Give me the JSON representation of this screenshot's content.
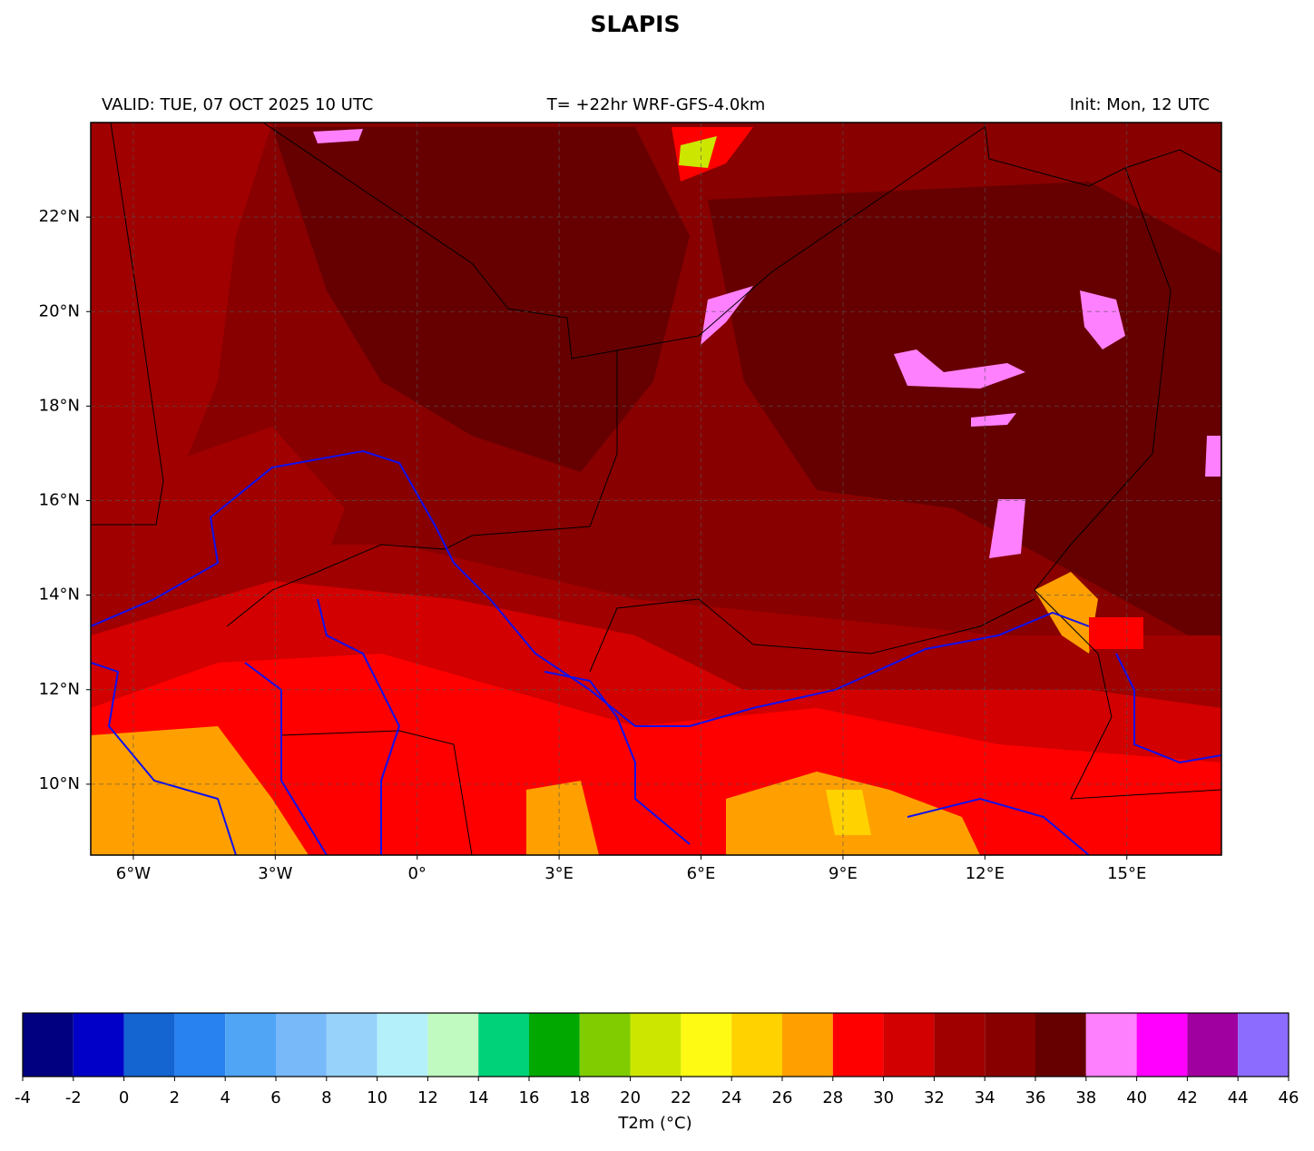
{
  "header": {
    "title": "SLAPIS",
    "valid": "VALID: TUE, 07 OCT 2025 10 UTC",
    "run": "T= +22hr WRF-GFS-4.0km",
    "init": "Init: Mon, 12 UTC"
  },
  "map": {
    "xlim": [
      -6.9,
      17
    ],
    "ylim": [
      8.5,
      24
    ],
    "xticks": [
      {
        "value": -6,
        "label": "6°W"
      },
      {
        "value": -3,
        "label": "3°W"
      },
      {
        "value": 0,
        "label": "0°"
      },
      {
        "value": 3,
        "label": "3°E"
      },
      {
        "value": 6,
        "label": "6°E"
      },
      {
        "value": 9,
        "label": "9°E"
      },
      {
        "value": 12,
        "label": "12°E"
      },
      {
        "value": 15,
        "label": "15°E"
      }
    ],
    "yticks": [
      {
        "value": 10,
        "label": "10°N"
      },
      {
        "value": 12,
        "label": "12°N"
      },
      {
        "value": 14,
        "label": "14°N"
      },
      {
        "value": 16,
        "label": "16°N"
      },
      {
        "value": 18,
        "label": "18°N"
      },
      {
        "value": 20,
        "label": "20°N"
      },
      {
        "value": 22,
        "label": "22°N"
      }
    ]
  },
  "colorbar": {
    "label": "T2m (°C)",
    "bounds": [
      -4,
      -2,
      0,
      2,
      4,
      6,
      8,
      10,
      12,
      14,
      16,
      18,
      20,
      22,
      24,
      26,
      28,
      30,
      32,
      34,
      36,
      38,
      40,
      42,
      44,
      46
    ],
    "colors": [
      "#000080",
      "#0000c8",
      "#1464d2",
      "#2882f0",
      "#50a5f5",
      "#78b9fa",
      "#96d2fa",
      "#b4f0fa",
      "#c0fac0",
      "#00d27a",
      "#00a800",
      "#80cc00",
      "#cce600",
      "#fffa14",
      "#ffd200",
      "#ffa000",
      "#ff0000",
      "#d20000",
      "#a00000",
      "#880000",
      "#660000",
      "#ff80ff",
      "#ff00ff",
      "#a000a0",
      "#8c6cff"
    ]
  }
}
